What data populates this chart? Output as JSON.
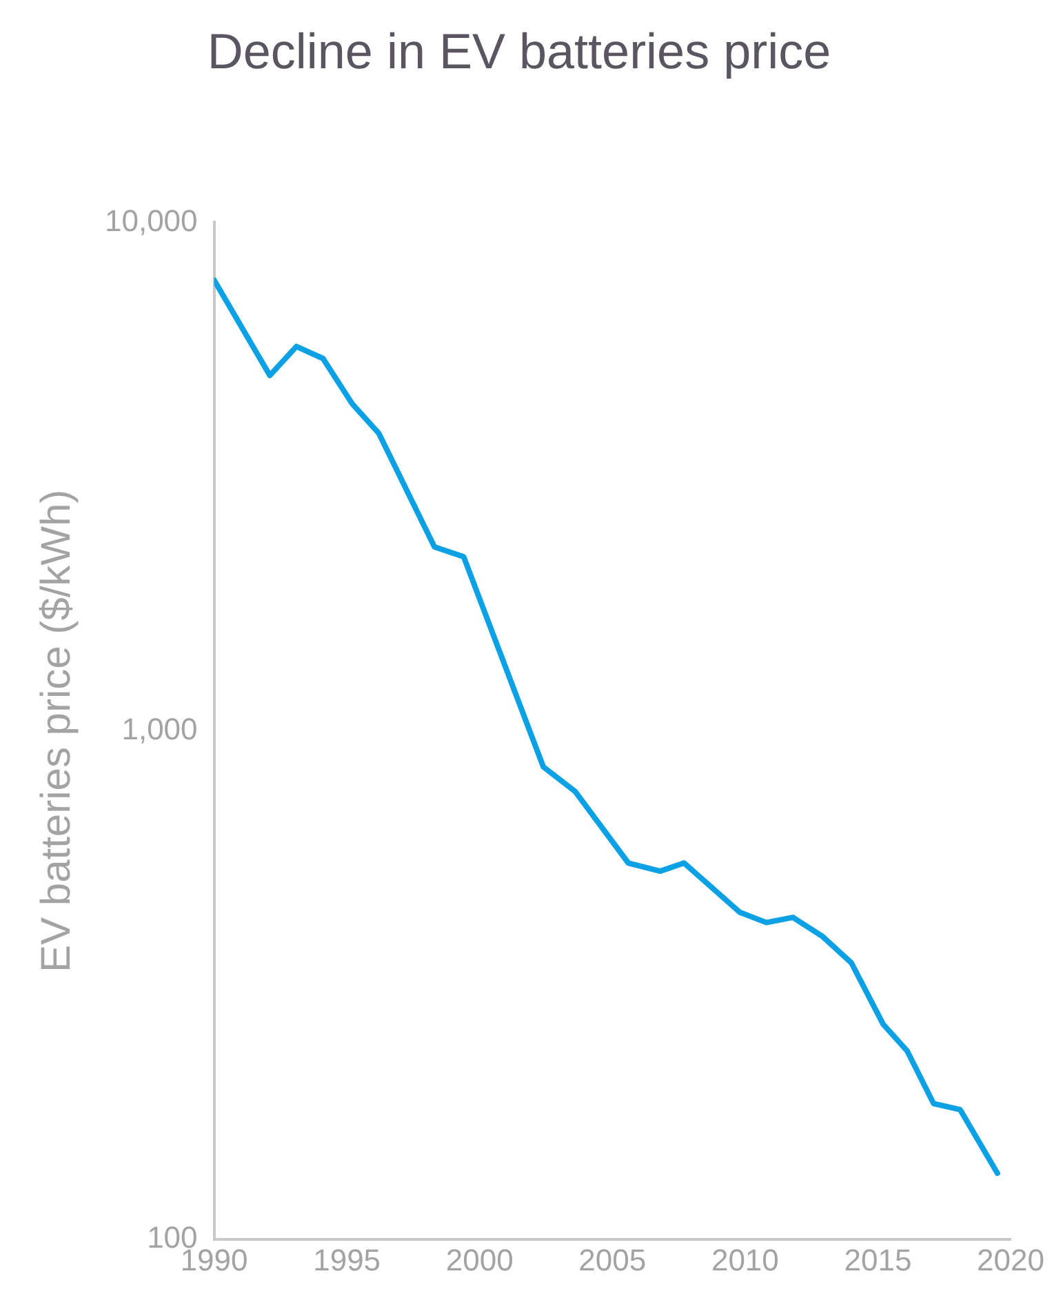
{
  "chart_data": {
    "type": "line",
    "title": "Decline in EV batteries price",
    "ylabel": "EV batteries price ($/kWh)",
    "x": [
      1990,
      1992.1,
      1993.1,
      1994.1,
      1995.2,
      1996.2,
      1998.3,
      1999.4,
      2002.4,
      2003.6,
      2005.6,
      2006.8,
      2007.7,
      2009.8,
      2010.8,
      2011.8,
      2012.9,
      2014,
      2015.2,
      2016.1,
      2017.1,
      2018.1,
      2019.5
    ],
    "series": [
      {
        "color": "#0ca0e4",
        "values": [
          7700,
          5000,
          5700,
          5400,
          4400,
          3850,
          2300,
          2200,
          850,
          760,
          550,
          530,
          550,
          440,
          420,
          430,
          395,
          350,
          265,
          235,
          185,
          180,
          135
        ]
      }
    ],
    "xlim": [
      1990,
      2020
    ],
    "xticks": [
      1990,
      1995,
      2000,
      2005,
      2010,
      2015,
      2020
    ],
    "ylim": [
      100,
      10000
    ],
    "yticks": [
      {
        "value": 100,
        "label": "100"
      },
      {
        "value": 1000,
        "label": "1,000"
      },
      {
        "value": 10000,
        "label": "10,000"
      }
    ],
    "log": "y",
    "grid": false,
    "legend": false,
    "marker": "none",
    "line_style": "solid"
  }
}
